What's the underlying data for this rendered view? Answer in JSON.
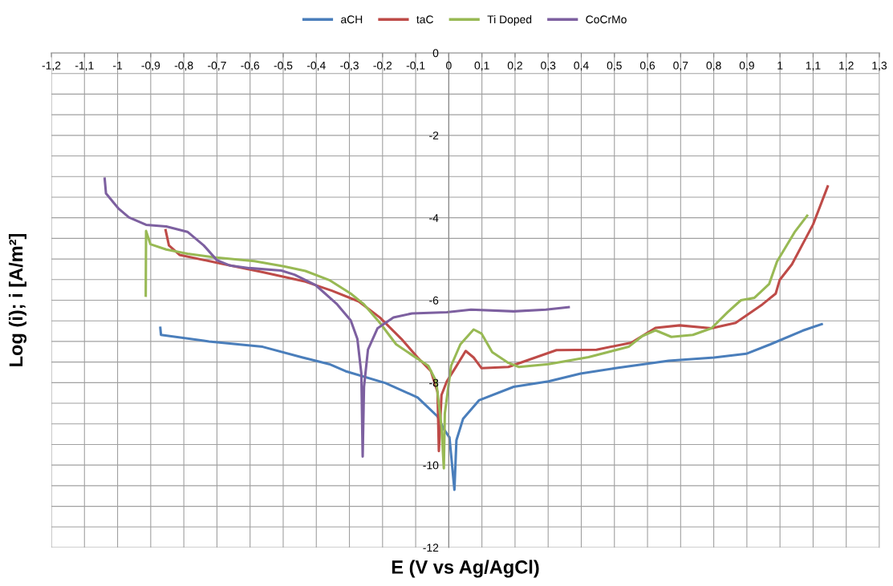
{
  "chart_data": {
    "type": "line",
    "xlabel": "E (V vs Ag/AgCl)",
    "ylabel": "Log (i); i [A/m²]",
    "xlim": [
      -1.2,
      1.3
    ],
    "ylim": [
      -12,
      0
    ],
    "xticks": [
      {
        "value": -1.2,
        "label": "-1,2"
      },
      {
        "value": -1.1,
        "label": "-1,1"
      },
      -1,
      {
        "value": -0.9,
        "label": "-0,9"
      },
      {
        "value": -0.8,
        "label": "-0,8"
      },
      {
        "value": -0.7,
        "label": "-0,7"
      },
      {
        "value": -0.6,
        "label": "-0,6"
      },
      {
        "value": -0.5,
        "label": "-0,5"
      },
      {
        "value": -0.4,
        "label": "-0,4"
      },
      {
        "value": -0.3,
        "label": "-0,3"
      },
      {
        "value": -0.2,
        "label": "-0,2"
      },
      {
        "value": -0.1,
        "label": "-0,1"
      },
      0,
      {
        "value": 0.1,
        "label": "0,1"
      },
      {
        "value": 0.2,
        "label": "0,2"
      },
      {
        "value": 0.3,
        "label": "0,3"
      },
      {
        "value": 0.4,
        "label": "0,4"
      },
      {
        "value": 0.5,
        "label": "0,5"
      },
      {
        "value": 0.6,
        "label": "0,6"
      },
      {
        "value": 0.7,
        "label": "0,7"
      },
      {
        "value": 0.8,
        "label": "0,8"
      },
      {
        "value": 0.9,
        "label": "0,9"
      },
      1,
      {
        "value": 1.1,
        "label": "1,1"
      },
      {
        "value": 1.2,
        "label": "1,2"
      },
      {
        "value": 1.3,
        "label": "1,3"
      }
    ],
    "yticks": [
      0,
      {
        "value": -0.5,
        "label": null
      },
      {
        "value": -1,
        "label": null
      },
      {
        "value": -1.5,
        "label": null
      },
      -2,
      {
        "value": -2.5,
        "label": null
      },
      {
        "value": -3,
        "label": null
      },
      {
        "value": -3.5,
        "label": null
      },
      -4,
      {
        "value": -4.5,
        "label": null
      },
      {
        "value": -5,
        "label": null
      },
      {
        "value": -5.5,
        "label": null
      },
      -6,
      {
        "value": -6.5,
        "label": null
      },
      {
        "value": -7,
        "label": null
      },
      {
        "value": -7.5,
        "label": null
      },
      -8,
      {
        "value": -8.5,
        "label": null
      },
      {
        "value": -9,
        "label": null
      },
      {
        "value": -9.5,
        "label": null
      },
      -10,
      {
        "value": -10.5,
        "label": null
      },
      {
        "value": -11,
        "label": null
      },
      {
        "value": -11.5,
        "label": null
      },
      -12
    ],
    "grid": true,
    "legend": "top",
    "marker": "none",
    "line_style": "solid",
    "series": [
      {
        "name": "aCH",
        "color": "#4a7ebb",
        "x": [
          -0.871,
          -0.869,
          -0.724,
          -0.562,
          -0.441,
          -0.361,
          -0.312,
          -0.191,
          -0.094,
          -0.034,
          -0.014,
          0.002,
          0.017,
          0.023,
          0.043,
          0.091,
          0.196,
          0.301,
          0.398,
          0.503,
          0.664,
          0.801,
          0.898,
          0.971,
          1.068,
          1.126
        ],
        "values": [
          -6.67,
          -6.84,
          -7.0,
          -7.13,
          -7.39,
          -7.55,
          -7.72,
          -8.01,
          -8.36,
          -8.82,
          -9.14,
          -9.33,
          -10.6,
          -9.4,
          -8.88,
          -8.43,
          -8.1,
          -7.97,
          -7.78,
          -7.65,
          -7.47,
          -7.39,
          -7.3,
          -7.07,
          -6.74,
          -6.58
        ]
      },
      {
        "name": "taC",
        "color": "#be4b48",
        "x": [
          -0.855,
          -0.845,
          -0.813,
          -0.7,
          -0.562,
          -0.433,
          -0.353,
          -0.272,
          -0.208,
          -0.143,
          -0.094,
          -0.054,
          -0.034,
          -0.03,
          -0.022,
          -0.006,
          0.019,
          0.051,
          0.075,
          0.099,
          0.18,
          0.325,
          0.446,
          0.551,
          0.624,
          0.697,
          0.793,
          0.866,
          0.947,
          0.987,
          0.999,
          1.036,
          1.1,
          1.144
        ],
        "values": [
          -4.3,
          -4.67,
          -4.9,
          -5.09,
          -5.32,
          -5.55,
          -5.77,
          -6.03,
          -6.42,
          -6.94,
          -7.39,
          -7.72,
          -8.23,
          -9.66,
          -8.3,
          -7.97,
          -7.65,
          -7.23,
          -7.39,
          -7.65,
          -7.62,
          -7.21,
          -7.2,
          -7.03,
          -6.67,
          -6.61,
          -6.68,
          -6.55,
          -6.1,
          -5.84,
          -5.51,
          -5.13,
          -4.16,
          -3.24
        ]
      },
      {
        "name": "Ti Doped",
        "color": "#98b954",
        "x": [
          -0.915,
          -0.914,
          -0.901,
          -0.853,
          -0.789,
          -0.708,
          -0.587,
          -0.498,
          -0.433,
          -0.361,
          -0.296,
          -0.256,
          -0.208,
          -0.159,
          -0.111,
          -0.062,
          -0.038,
          -0.022,
          -0.015,
          -0.012,
          0.007,
          0.035,
          0.075,
          0.099,
          0.131,
          0.18,
          0.212,
          0.301,
          0.422,
          0.543,
          0.584,
          0.624,
          0.672,
          0.737,
          0.793,
          0.842,
          0.882,
          0.923,
          0.967,
          0.991,
          1.044,
          1.082
        ],
        "values": [
          -5.89,
          -4.32,
          -4.64,
          -4.77,
          -4.87,
          -4.96,
          -5.05,
          -5.18,
          -5.29,
          -5.51,
          -5.84,
          -6.1,
          -6.55,
          -7.07,
          -7.33,
          -7.59,
          -7.97,
          -9.07,
          -10.08,
          -8.75,
          -7.59,
          -7.07,
          -6.71,
          -6.81,
          -7.26,
          -7.52,
          -7.62,
          -7.55,
          -7.38,
          -7.13,
          -6.87,
          -6.73,
          -6.89,
          -6.84,
          -6.68,
          -6.29,
          -6.0,
          -5.94,
          -5.61,
          -5.06,
          -4.35,
          -3.95
        ]
      },
      {
        "name": "CoCrMo",
        "color": "#7d60a0",
        "x": [
          -1.039,
          -1.035,
          -0.998,
          -0.966,
          -0.914,
          -0.853,
          -0.789,
          -0.74,
          -0.7,
          -0.66,
          -0.603,
          -0.506,
          -0.466,
          -0.401,
          -0.337,
          -0.296,
          -0.276,
          -0.264,
          -0.26,
          -0.256,
          -0.244,
          -0.215,
          -0.167,
          -0.111,
          -0.006,
          0.067,
          0.196,
          0.293,
          0.362
        ],
        "values": [
          -3.05,
          -3.41,
          -3.77,
          -3.99,
          -4.17,
          -4.21,
          -4.34,
          -4.67,
          -5.03,
          -5.16,
          -5.22,
          -5.28,
          -5.38,
          -5.64,
          -6.1,
          -6.49,
          -6.94,
          -7.78,
          -9.79,
          -8.1,
          -7.2,
          -6.68,
          -6.42,
          -6.32,
          -6.29,
          -6.23,
          -6.27,
          -6.23,
          -6.17
        ]
      }
    ]
  }
}
